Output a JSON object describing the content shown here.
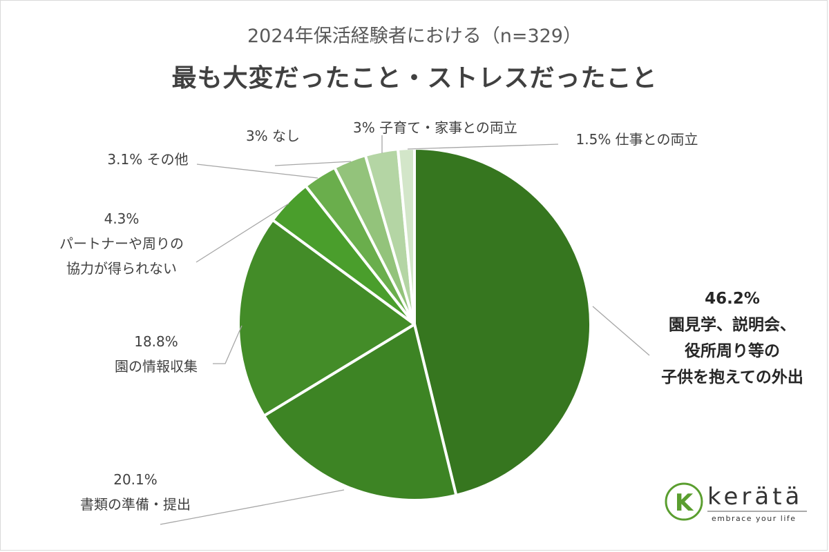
{
  "chart_data": {
    "type": "pie",
    "subtitle": "2024年保活経験者における（n=329）",
    "title": "最も大変だったこと・ストレスだったこと",
    "slices": [
      {
        "value": 46.2,
        "percent_label": "46.2%",
        "label_lines": [
          "園見学、説明会、",
          "役所周り等の",
          "子供を抱えての外出"
        ],
        "color": "#36761f"
      },
      {
        "value": 20.1,
        "percent_label": "20.1%",
        "label_lines": [
          "書類の準備・提出"
        ],
        "color": "#3d8424"
      },
      {
        "value": 18.8,
        "percent_label": "18.8%",
        "label_lines": [
          "園の情報収集"
        ],
        "color": "#438c28"
      },
      {
        "value": 4.3,
        "percent_label": "4.3%",
        "label_lines": [
          "パートナーや周りの",
          "協力が得られない"
        ],
        "color": "#4a9e2c"
      },
      {
        "value": 3.1,
        "percent_label": "3.1%",
        "label_lines": [
          "その他"
        ],
        "color": "#6aae4c"
      },
      {
        "value": 3.0,
        "percent_label": "3%",
        "label_lines": [
          "なし"
        ],
        "color": "#93c37b"
      },
      {
        "value": 3.0,
        "percent_label": "3%",
        "label_lines": [
          "子育て・家事との両立"
        ],
        "color": "#b4d5a4"
      },
      {
        "value": 1.5,
        "percent_label": "1.5%",
        "label_lines": [
          "仕事との両立"
        ],
        "color": "#d3e6c9"
      }
    ]
  },
  "brand": {
    "logo_letter": "K",
    "name": "kerätä",
    "tagline": "embrace your life",
    "color": "#5a9e2f"
  }
}
